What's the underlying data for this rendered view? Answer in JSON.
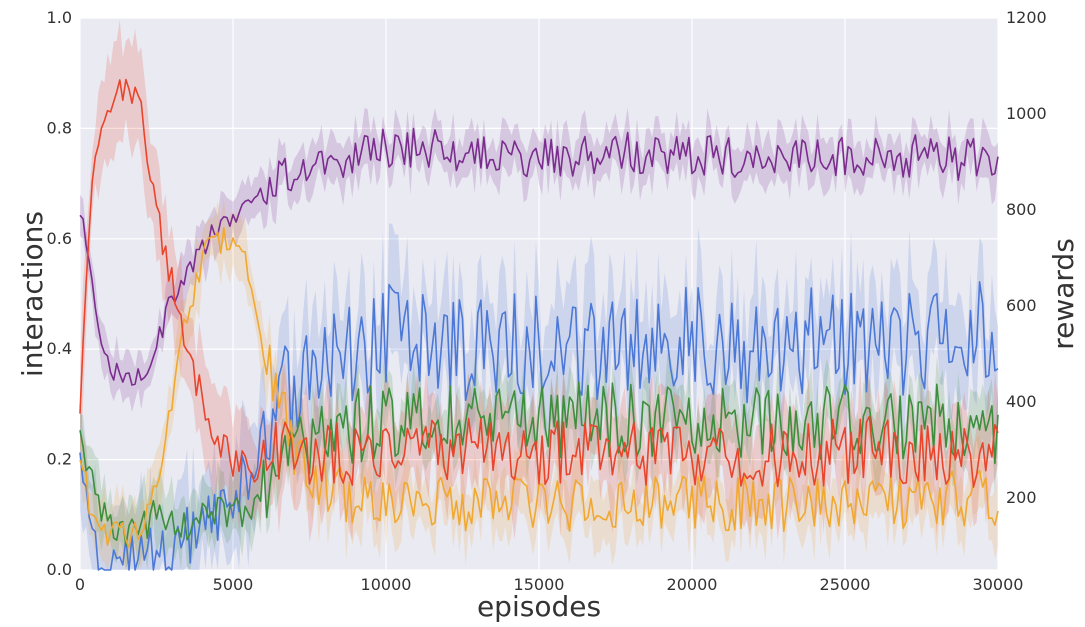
{
  "chart_data": {
    "type": "line",
    "xlabel": "episodes",
    "ylabel": "interactions",
    "ylabel_right": "rewards",
    "xlim": [
      0,
      30000
    ],
    "ylim": [
      0,
      1.0
    ],
    "ylim_right": [
      50,
      1200
    ],
    "xticks": [
      "0",
      "5000",
      "10000",
      "15000",
      "20000",
      "25000",
      "30000"
    ],
    "yticks": [
      "0.0",
      "0.2",
      "0.4",
      "0.6",
      "0.8",
      "1.0"
    ],
    "yticks_right": [
      "200",
      "400",
      "600",
      "800",
      "1000",
      "1200"
    ],
    "grid": true,
    "background": "#EAEAF2",
    "series": [
      {
        "color": "#7B2D8E",
        "axis": "right",
        "x": [
          0,
          500,
          1000,
          1500,
          2000,
          2500,
          3000,
          3500,
          4000,
          4500,
          5000,
          5500,
          6000,
          7000,
          8000,
          9000,
          10000,
          12000,
          14000,
          16000,
          18000,
          20000,
          22000,
          24000,
          26000,
          28000,
          30000
        ],
        "y": [
          800,
          590,
          470,
          450,
          460,
          510,
          620,
          660,
          720,
          760,
          790,
          820,
          840,
          880,
          900,
          920,
          930,
          920,
          910,
          915,
          920,
          915,
          910,
          910,
          915,
          910,
          900
        ]
      },
      {
        "color": "#4C78D6",
        "axis": "left",
        "x": [
          0,
          500,
          1000,
          1500,
          2000,
          2500,
          3000,
          3500,
          4000,
          4500,
          5000,
          5500,
          6000,
          7000,
          8000,
          9000,
          10000,
          12000,
          14000,
          16000,
          18000,
          20000,
          22000,
          24000,
          26000,
          28000,
          30000
        ],
        "y": [
          0.23,
          0.05,
          0.02,
          0.01,
          0.02,
          0.03,
          0.04,
          0.06,
          0.08,
          0.1,
          0.13,
          0.18,
          0.26,
          0.34,
          0.38,
          0.4,
          0.42,
          0.4,
          0.42,
          0.4,
          0.41,
          0.42,
          0.4,
          0.42,
          0.41,
          0.42,
          0.43
        ]
      },
      {
        "color": "#3E8E3E",
        "axis": "left",
        "x": [
          0,
          500,
          1000,
          1500,
          2000,
          2500,
          3000,
          3500,
          4000,
          4500,
          5000,
          5500,
          6000,
          7000,
          8000,
          9000,
          10000,
          12000,
          14000,
          16000,
          18000,
          20000,
          22000,
          24000,
          26000,
          28000,
          30000
        ],
        "y": [
          0.26,
          0.12,
          0.08,
          0.07,
          0.08,
          0.09,
          0.09,
          0.09,
          0.1,
          0.1,
          0.09,
          0.1,
          0.13,
          0.2,
          0.24,
          0.26,
          0.27,
          0.27,
          0.26,
          0.27,
          0.27,
          0.27,
          0.26,
          0.27,
          0.27,
          0.27,
          0.25
        ]
      },
      {
        "color": "#F0A830",
        "axis": "left",
        "x": [
          0,
          500,
          1000,
          1500,
          2000,
          2500,
          3000,
          3500,
          4000,
          4500,
          5000,
          5500,
          6000,
          7000,
          8000,
          9000,
          10000,
          12000,
          14000,
          16000,
          18000,
          20000,
          22000,
          24000,
          26000,
          28000,
          30000
        ],
        "y": [
          0.2,
          0.08,
          0.07,
          0.06,
          0.08,
          0.15,
          0.3,
          0.47,
          0.56,
          0.6,
          0.6,
          0.55,
          0.4,
          0.22,
          0.15,
          0.13,
          0.12,
          0.12,
          0.12,
          0.12,
          0.12,
          0.12,
          0.12,
          0.12,
          0.12,
          0.13,
          0.13
        ]
      },
      {
        "color": "#E8452C",
        "axis": "left",
        "x": [
          0,
          300,
          600,
          1000,
          1500,
          2000,
          2500,
          3000,
          3500,
          4000,
          4500,
          5000,
          5500,
          6000,
          7000,
          8000,
          9000,
          10000,
          12000,
          14000,
          16000,
          18000,
          20000,
          22000,
          24000,
          26000,
          28000,
          30000
        ],
        "y": [
          0.28,
          0.62,
          0.78,
          0.85,
          0.88,
          0.82,
          0.66,
          0.52,
          0.42,
          0.3,
          0.24,
          0.19,
          0.18,
          0.21,
          0.21,
          0.21,
          0.21,
          0.21,
          0.22,
          0.22,
          0.21,
          0.21,
          0.21,
          0.21,
          0.21,
          0.22,
          0.21,
          0.21
        ]
      }
    ]
  }
}
